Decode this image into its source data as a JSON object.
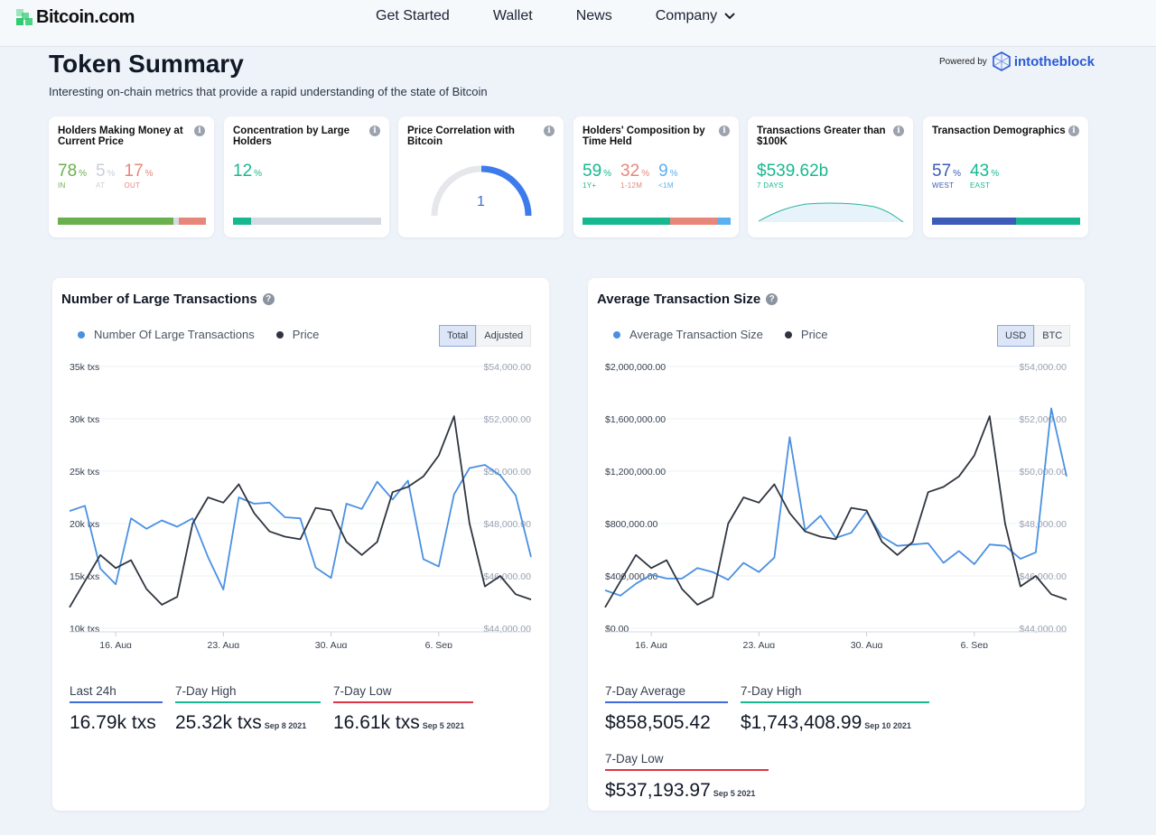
{
  "nav": {
    "logo_text": "Bitcoin.com",
    "links": [
      "Get Started",
      "Wallet",
      "News",
      "Company"
    ]
  },
  "header": {
    "title": "Token Summary",
    "subtitle": "Interesting on-chain metrics that provide a rapid understanding of the state of Bitcoin",
    "powered_by": "Powered by",
    "partner": "intotheblock"
  },
  "cards": [
    {
      "title": "Holders Making Money at Current Price",
      "values": [
        {
          "num": "78",
          "pct": "%",
          "sub": "IN"
        },
        {
          "num": "5",
          "pct": "%",
          "sub": "AT"
        },
        {
          "num": "17",
          "pct": "%",
          "sub": "OUT"
        }
      ]
    },
    {
      "title": "Concentration by Large Holders",
      "values": [
        {
          "num": "12",
          "pct": "%"
        }
      ]
    },
    {
      "title": "Price Correlation with Bitcoin",
      "gauge_value": "1"
    },
    {
      "title": "Holders' Composition by Time Held",
      "values": [
        {
          "num": "59",
          "pct": "%",
          "sub": "1Y+"
        },
        {
          "num": "32",
          "pct": "%",
          "sub": "1-12M"
        },
        {
          "num": "9",
          "pct": "%",
          "sub": "<1M"
        }
      ]
    },
    {
      "title": "Transactions Greater than $100K",
      "values": [
        {
          "num": "$539.62b",
          "sub": "7 DAYS"
        }
      ]
    },
    {
      "title": "Transaction Demographics",
      "values": [
        {
          "num": "57",
          "pct": "%",
          "sub": "WEST"
        },
        {
          "num": "43",
          "pct": "%",
          "sub": "EAST"
        }
      ]
    }
  ],
  "colors": {
    "green": "#6ab04c",
    "gray": "#d6dbe3",
    "red": "#e8867a",
    "teal": "#17b890",
    "blue": "#4a90e2",
    "dark": "#2f3540",
    "navy": "#3b5cb8",
    "lightblue": "#5ab0f0"
  },
  "panels": [
    {
      "title": "Number of Large Transactions",
      "legend": [
        "Number Of Large Transactions",
        "Price"
      ],
      "toggle": [
        "Total",
        "Adjusted"
      ],
      "stats": [
        {
          "label": "Last 24h",
          "value": "16.79k txs",
          "date": ""
        },
        {
          "label": "7-Day High",
          "value": "25.32k txs",
          "date": "Sep 8 2021"
        },
        {
          "label": "7-Day Low",
          "value": "16.61k txs",
          "date": "Sep 5 2021"
        }
      ]
    },
    {
      "title": "Average Transaction Size",
      "legend": [
        "Average Transaction Size",
        "Price"
      ],
      "toggle": [
        "USD",
        "BTC"
      ],
      "stats": [
        {
          "label": "7-Day Average",
          "value": "$858,505.42",
          "date": ""
        },
        {
          "label": "7-Day High",
          "value": "$1,743,408.99",
          "date": "Sep 10 2021"
        },
        {
          "label": "7-Day Low",
          "value": "$537,193.97",
          "date": "Sep 5 2021"
        }
      ]
    }
  ],
  "chart_data": [
    {
      "type": "line",
      "title": "Number of Large Transactions",
      "x_ticks": [
        "16. Aug",
        "23. Aug",
        "30. Aug",
        "6. Sep"
      ],
      "y_left_ticks": [
        "35k txs",
        "30k txs",
        "25k txs",
        "20k txs",
        "15k txs",
        "10k txs"
      ],
      "y_right_ticks": [
        "$54,000.00",
        "$52,000.00",
        "$50,000.00",
        "$48,000.00",
        "$46,000.00",
        "$44,000.00"
      ],
      "ylim_left": [
        10,
        35
      ],
      "ylim_right": [
        44000,
        54000
      ],
      "series": [
        {
          "name": "Number Of Large Transactions",
          "axis": "left",
          "values": [
            21.2,
            21.7,
            15.7,
            14.2,
            20.5,
            19.5,
            20.3,
            19.7,
            20.5,
            16.8,
            13.7,
            22.5,
            21.9,
            22.0,
            20.6,
            20.5,
            15.8,
            14.8,
            21.9,
            21.4,
            24.0,
            22.3,
            24.1,
            16.6,
            15.9,
            22.8,
            25.3,
            25.6,
            24.6,
            22.7,
            16.8
          ]
        },
        {
          "name": "Price",
          "axis": "right",
          "values": [
            44.8,
            45.8,
            46.8,
            46.3,
            46.6,
            45.5,
            44.9,
            45.2,
            48.0,
            49.0,
            48.8,
            49.5,
            48.4,
            47.7,
            47.5,
            47.4,
            48.6,
            48.5,
            47.3,
            46.8,
            47.3,
            49.2,
            49.4,
            49.8,
            50.6,
            52.1,
            48.0,
            45.6,
            46.0,
            45.3,
            45.1
          ]
        }
      ]
    },
    {
      "type": "line",
      "title": "Average Transaction Size",
      "x_ticks": [
        "16. Aug",
        "23. Aug",
        "30. Aug",
        "6. Sep"
      ],
      "y_left_ticks": [
        "$2,000,000.00",
        "$1,600,000.00",
        "$1,200,000.00",
        "$800,000.00",
        "$400,000.00",
        "$0.00"
      ],
      "y_right_ticks": [
        "$54,000.00",
        "$52,000.00",
        "$50,000.00",
        "$48,000.00",
        "$46,000.00",
        "$44,000.00"
      ],
      "ylim_left": [
        0,
        2000000
      ],
      "ylim_right": [
        44000,
        54000
      ],
      "series": [
        {
          "name": "Average Transaction Size",
          "axis": "left",
          "values": [
            290000,
            250000,
            340000,
            410000,
            380000,
            380000,
            460000,
            430000,
            370000,
            500000,
            430000,
            540000,
            1460000,
            750000,
            860000,
            690000,
            730000,
            890000,
            700000,
            630000,
            640000,
            650000,
            500000,
            590000,
            490000,
            640000,
            630000,
            530000,
            580000,
            1680000,
            1160000
          ]
        },
        {
          "name": "Price",
          "axis": "right",
          "values": [
            44.8,
            45.8,
            46.8,
            46.3,
            46.6,
            45.5,
            44.9,
            45.2,
            48.0,
            49.0,
            48.8,
            49.5,
            48.4,
            47.7,
            47.5,
            47.4,
            48.6,
            48.5,
            47.3,
            46.8,
            47.3,
            49.2,
            49.4,
            49.8,
            50.6,
            52.1,
            48.0,
            45.6,
            46.0,
            45.3,
            45.1
          ]
        }
      ]
    }
  ]
}
